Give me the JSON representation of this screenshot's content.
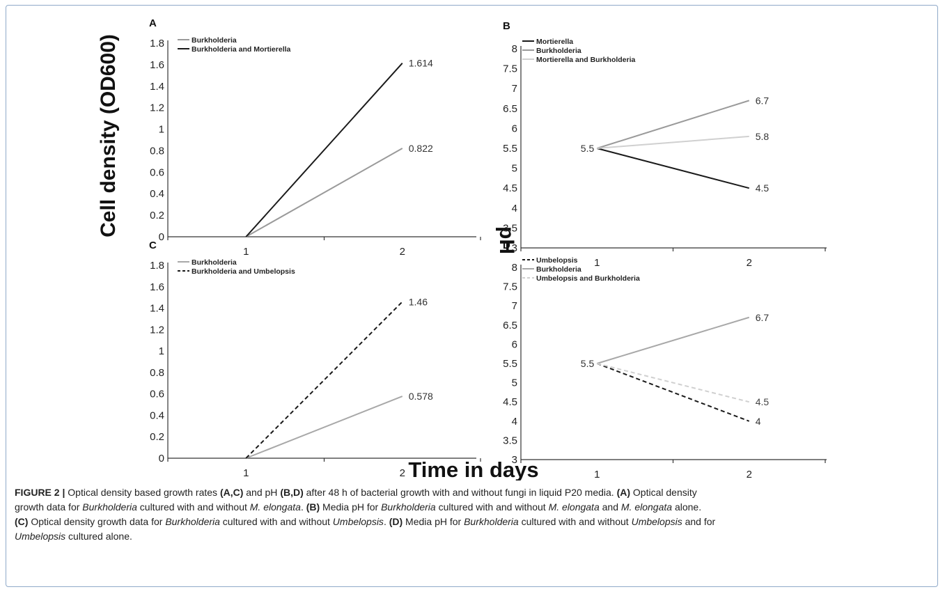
{
  "figure": {
    "ylabel_left": "Cell density (OD600)",
    "ylabel_right": "pH",
    "xlabel": "Time in days"
  },
  "chart_data": [
    {
      "id": "A",
      "type": "line",
      "panel_label": "A",
      "x": [
        "1",
        "2"
      ],
      "ylim": [
        0,
        1.8
      ],
      "yticks": [
        "0",
        "0.2",
        "0.4",
        "0.6",
        "0.8",
        "1",
        "1.2",
        "1.4",
        "1.6",
        "1.8"
      ],
      "legend_position": "top-left",
      "series": [
        {
          "name": "Burkholderia",
          "values": [
            0,
            0.822
          ],
          "labels": [
            "",
            "0.822"
          ],
          "color": "#9a9a9a",
          "dash": "none"
        },
        {
          "name": "Burkholderia and Mortierella",
          "values": [
            0,
            1.614
          ],
          "labels": [
            "",
            "1.614"
          ],
          "color": "#1a1a1a",
          "dash": "none"
        }
      ]
    },
    {
      "id": "B",
      "type": "line",
      "panel_label": "B",
      "x": [
        "1",
        "2"
      ],
      "ylim": [
        3,
        8
      ],
      "yticks": [
        "3",
        "3.5",
        "4",
        "4.5",
        "5",
        "5.5",
        "6",
        "6.5",
        "7",
        "7.5",
        "8"
      ],
      "legend_position": "top-left",
      "start_label": "5.5",
      "series": [
        {
          "name": "Mortierella",
          "values": [
            5.5,
            4.5
          ],
          "labels": [
            "",
            "4.5"
          ],
          "color": "#1a1a1a",
          "dash": "none"
        },
        {
          "name": "Burkholderia",
          "values": [
            5.5,
            6.7
          ],
          "labels": [
            "",
            "6.7"
          ],
          "color": "#9a9a9a",
          "dash": "none"
        },
        {
          "name": "Mortierella and Burkholderia",
          "values": [
            5.5,
            5.8
          ],
          "labels": [
            "",
            "5.8"
          ],
          "color": "#d0d0d0",
          "dash": "none"
        }
      ]
    },
    {
      "id": "C",
      "type": "line",
      "panel_label": "C",
      "x": [
        "1",
        "2"
      ],
      "ylim": [
        0,
        1.8
      ],
      "yticks": [
        "0",
        "0.2",
        "0.4",
        "0.6",
        "0.8",
        "1",
        "1.2",
        "1.4",
        "1.6",
        "1.8"
      ],
      "legend_position": "top-left",
      "series": [
        {
          "name": "Burkholderia",
          "values": [
            0,
            0.578
          ],
          "labels": [
            "",
            "0.578"
          ],
          "color": "#a8a8a8",
          "dash": "none"
        },
        {
          "name": "Burkholderia and Umbelopsis",
          "values": [
            0,
            1.46
          ],
          "labels": [
            "",
            "1.46"
          ],
          "color": "#1a1a1a",
          "dash": "6,4"
        }
      ]
    },
    {
      "id": "D",
      "type": "line",
      "panel_label": "D",
      "x": [
        "1",
        "2"
      ],
      "ylim": [
        3,
        8
      ],
      "yticks": [
        "3",
        "3.5",
        "4",
        "4.5",
        "5",
        "5.5",
        "6",
        "6.5",
        "7",
        "7.5",
        "8"
      ],
      "legend_position": "top-left",
      "start_label": "5.5",
      "series": [
        {
          "name": "Umbelopsis",
          "values": [
            5.5,
            4.0
          ],
          "labels": [
            "",
            "4"
          ],
          "color": "#1a1a1a",
          "dash": "6,4"
        },
        {
          "name": "Burkholderia",
          "values": [
            5.5,
            6.7
          ],
          "labels": [
            "",
            "6.7"
          ],
          "color": "#a8a8a8",
          "dash": "none"
        },
        {
          "name": "Umbelopsis and Burkholderia",
          "values": [
            5.5,
            4.5
          ],
          "labels": [
            "",
            "4.5"
          ],
          "color": "#d0d0d0",
          "dash": "6,4"
        }
      ]
    }
  ],
  "caption": {
    "l1_a": "FIGURE 2 |",
    "l1_b": " Optical density based growth rates ",
    "l1_c": "(A,C)",
    "l1_d": " and pH ",
    "l1_e": "(B,D)",
    "l1_f": " after 48 h of bacterial growth with and without fungi in liquid P20 media. ",
    "l1_g": "(A)",
    "l1_h": " Optical density",
    "l2_a": "growth data for ",
    "l2_b": "Burkholderia",
    "l2_c": " cultured with and without ",
    "l2_d": "M. elongata",
    "l2_e": ". ",
    "l2_f": "(B)",
    "l2_g": " Media pH for ",
    "l2_h": "Burkholderia",
    "l2_i": " cultured with and without ",
    "l2_j": "M. elongata",
    "l2_k": " and ",
    "l2_l": "M. elongata",
    "l2_m": " alone.",
    "l3_a": "(C)",
    "l3_b": " Optical density growth data for ",
    "l3_c": "Burkholderia",
    "l3_d": " cultured with and without ",
    "l3_e": "Umbelopsis",
    "l3_f": ". ",
    "l3_g": "(D)",
    "l3_h": " Media pH for ",
    "l3_i": "Burkholderia",
    "l3_j": " cultured with and without ",
    "l3_k": "Umbelopsis",
    "l3_l": " and for",
    "l4_a": "Umbelopsis",
    "l4_b": " cultured alone."
  }
}
